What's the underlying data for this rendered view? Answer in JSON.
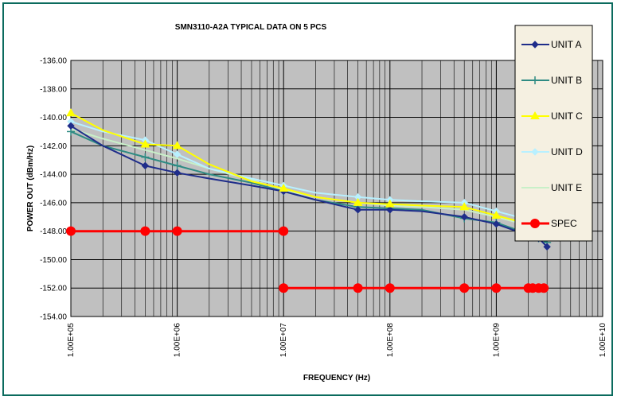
{
  "chart_data": {
    "type": "line",
    "title": "SMN3110-A2A TYPICAL DATA ON 5 PCS",
    "xlabel": "FREQUENCY (Hz)",
    "ylabel": "POWER OUT (dBm/Hz)",
    "x_scale": "log",
    "xlim": [
      100000,
      10000000000
    ],
    "ylim": [
      -154,
      -136
    ],
    "x_tick_labels": [
      "1.00E+05",
      "1.00E+06",
      "1.00E+07",
      "1.00E+08",
      "1.00E+09",
      "1.00E+10"
    ],
    "y_tick_labels": [
      "-136.00",
      "-138.00",
      "-140.00",
      "-142.00",
      "-144.00",
      "-146.00",
      "-148.00",
      "-150.00",
      "-152.00",
      "-154.00"
    ],
    "grid": true,
    "legend_position": "right",
    "series": [
      {
        "name": "UNIT A",
        "color": "#1f2d8a",
        "marker": "diamond",
        "x": [
          100000,
          200000,
          500000,
          1000000,
          2000000,
          5000000,
          10000000,
          20000000,
          50000000,
          100000000,
          200000000,
          500000000,
          1000000000,
          2000000000,
          2500000000,
          3000000000
        ],
        "y": [
          -140.6,
          -142.0,
          -143.4,
          -143.9,
          -144.3,
          -144.8,
          -145.2,
          -145.8,
          -146.5,
          -146.5,
          -146.6,
          -147.0,
          -147.5,
          -148.3,
          -148.5,
          -149.1
        ],
        "markers_at": [
          100000,
          500000,
          1000000,
          10000000,
          50000000,
          100000000,
          500000000,
          1000000000,
          2000000000,
          2500000000,
          3000000000
        ]
      },
      {
        "name": "UNIT B",
        "color": "#2e8b83",
        "marker": "plus",
        "x": [
          100000,
          200000,
          500000,
          1000000,
          2000000,
          5000000,
          10000000,
          20000000,
          50000000,
          100000000,
          200000000,
          500000000,
          1000000000,
          2000000000,
          2500000000,
          3000000000
        ],
        "y": [
          -141.0,
          -142.0,
          -142.8,
          -143.4,
          -144.0,
          -144.6,
          -145.2,
          -145.8,
          -146.3,
          -146.4,
          -146.5,
          -147.1,
          -147.4,
          -148.2,
          -148.5,
          -148.8
        ],
        "markers_at": [
          100000,
          500000,
          1000000,
          10000000,
          50000000,
          100000000,
          500000000,
          1000000000,
          2000000000,
          2500000000,
          3000000000
        ]
      },
      {
        "name": "UNIT C",
        "color": "#ffff00",
        "marker": "triangle",
        "x": [
          100000,
          200000,
          500000,
          1000000,
          2000000,
          5000000,
          10000000,
          20000000,
          50000000,
          100000000,
          200000000,
          500000000,
          1000000000,
          2000000000,
          2500000000,
          3000000000
        ],
        "y": [
          -139.7,
          -140.9,
          -141.9,
          -142.0,
          -143.3,
          -144.5,
          -145.0,
          -145.6,
          -146.0,
          -146.1,
          -146.2,
          -146.3,
          -146.9,
          -147.5,
          -147.6,
          -147.7
        ],
        "markers_at": [
          100000,
          500000,
          1000000,
          10000000,
          50000000,
          100000000,
          500000000,
          1000000000,
          2000000000,
          2500000000,
          3000000000
        ]
      },
      {
        "name": "UNIT D",
        "color": "#b8f0ff",
        "marker": "diamond",
        "x": [
          100000,
          200000,
          500000,
          1000000,
          2000000,
          5000000,
          10000000,
          20000000,
          50000000,
          100000000,
          200000000,
          500000000,
          1000000000,
          2000000000,
          2500000000,
          3000000000
        ],
        "y": [
          -140.3,
          -141.0,
          -141.6,
          -142.6,
          -143.6,
          -144.3,
          -144.8,
          -145.3,
          -145.6,
          -145.8,
          -145.9,
          -146.0,
          -146.6,
          -147.2,
          -147.3,
          -147.5
        ],
        "markers_at": [
          100000,
          500000,
          1000000,
          10000000,
          50000000,
          100000000,
          500000000,
          1000000000,
          2000000000,
          2500000000,
          3000000000
        ]
      },
      {
        "name": "UNIT E",
        "color": "#c8f0c8",
        "marker": "line",
        "x": [
          100000,
          200000,
          500000,
          1000000,
          2000000,
          5000000,
          10000000,
          20000000,
          50000000,
          100000000,
          200000000,
          500000000,
          1000000000,
          2000000000,
          2500000000,
          3000000000
        ],
        "y": [
          -140.8,
          -141.5,
          -142.3,
          -142.9,
          -143.6,
          -144.4,
          -145.1,
          -145.6,
          -146.0,
          -146.2,
          -146.3,
          -146.5,
          -147.0,
          -147.6,
          -147.8,
          -148.0
        ],
        "markers_at": []
      },
      {
        "name": "SPEC",
        "color": "#ff0000",
        "marker": "circle",
        "segments": [
          {
            "x": [
              100000,
              500000,
              1000000,
              10000000
            ],
            "y": [
              -148,
              -148,
              -148,
              -148
            ]
          },
          {
            "x": [
              10000000,
              50000000,
              100000000,
              500000000,
              1000000000,
              2000000000,
              2200000000,
              2500000000,
              2800000000
            ],
            "y": [
              -152,
              -152,
              -152,
              -152,
              -152,
              -152,
              -152,
              -152,
              -152
            ]
          }
        ]
      }
    ]
  }
}
